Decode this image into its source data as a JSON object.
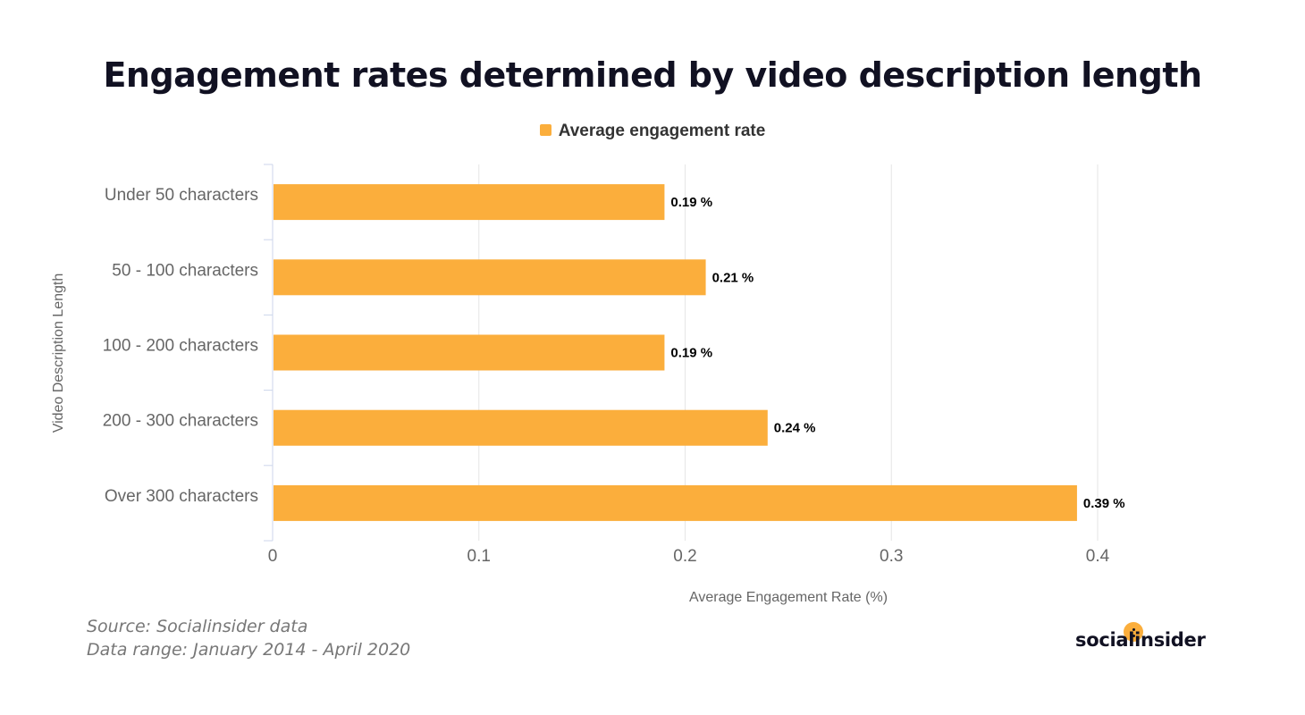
{
  "title": "Engagement rates determined by video description length",
  "legend": {
    "label": "Average engagement rate"
  },
  "footnote": {
    "source": "Source: Socialinsider data",
    "range": "Data range: January 2014 - April 2020"
  },
  "brand": {
    "name": "socialinsider"
  },
  "colors": {
    "bar": "#FBAE3C",
    "grid": "#e6e6e6",
    "axis": "#ccd6eb",
    "tick_text": "#666666",
    "label_text": "#000000"
  },
  "chart_data": {
    "type": "bar",
    "orientation": "horizontal",
    "categories": [
      "Under 50 characters",
      "50 - 100 characters",
      "100 - 200 characters",
      "200 - 300 characters",
      "Over 300 characters"
    ],
    "series": [
      {
        "name": "Average engagement rate",
        "values": [
          0.19,
          0.21,
          0.19,
          0.24,
          0.39
        ]
      }
    ],
    "data_labels": [
      "0.19 %",
      "0.21 %",
      "0.19 %",
      "0.24 %",
      "0.39 %"
    ],
    "xlabel": "Average Engagement Rate (%)",
    "ylabel": "Video Description Length",
    "xlim": [
      0,
      0.4
    ],
    "xticks": [
      "0",
      "0.1",
      "0.2",
      "0.3",
      "0.4"
    ],
    "grid": true,
    "legend_position": "top-center"
  }
}
